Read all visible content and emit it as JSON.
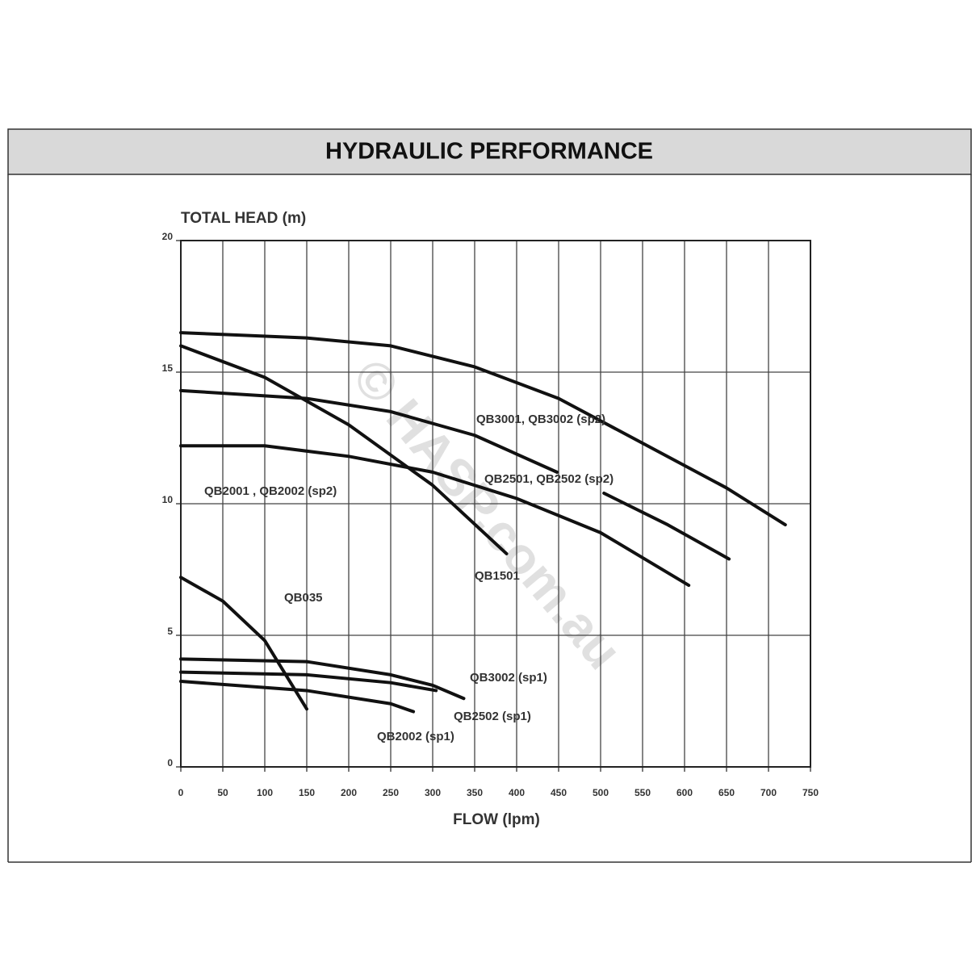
{
  "chart_data": {
    "type": "line",
    "title": "HYDRAULIC PERFORMANCE",
    "y_label": "TOTAL HEAD (m)",
    "x_label": "FLOW (lpm)",
    "watermark": "© HASP.com.au",
    "xlim": [
      0,
      750
    ],
    "ylim": [
      0,
      20
    ],
    "xticks": [
      0,
      50,
      100,
      150,
      200,
      250,
      300,
      350,
      400,
      450,
      500,
      550,
      600,
      650,
      700,
      750
    ],
    "yticks": [
      0,
      5,
      10,
      15,
      20
    ],
    "grid": true,
    "series": [
      {
        "name": "QB3001, QB3002 (sp2)",
        "color": "#111111",
        "x": [
          0,
          150,
          250,
          350,
          450,
          550,
          650,
          720
        ],
        "values": [
          16.5,
          16.3,
          16.0,
          15.2,
          14.0,
          12.3,
          10.6,
          9.2
        ]
      },
      {
        "name": "QB2501, QB2502 (sp2)",
        "color": "#111111",
        "x": [
          0,
          150,
          250,
          350,
          448,
          475,
          504,
          580,
          653
        ],
        "values": [
          14.3,
          14.0,
          13.5,
          12.6,
          11.2,
          null,
          10.4,
          9.2,
          7.9
        ]
      },
      {
        "name": "QB2001 , QB2002 (sp2)",
        "color": "#111111",
        "x": [
          0,
          100,
          200,
          300,
          400,
          500,
          605
        ],
        "values": [
          12.2,
          12.2,
          11.8,
          11.2,
          10.2,
          8.9,
          6.9
        ]
      },
      {
        "name": "QB1501",
        "color": "#111111",
        "x": [
          0,
          100,
          200,
          300,
          388
        ],
        "values": [
          16.0,
          14.8,
          13.0,
          10.7,
          8.1
        ]
      },
      {
        "name": "QB035",
        "color": "#111111",
        "x": [
          0,
          50,
          100,
          150
        ],
        "values": [
          7.2,
          6.3,
          4.8,
          2.2
        ]
      },
      {
        "name": "QB3002 (sp1)",
        "color": "#111111",
        "x": [
          0,
          150,
          250,
          300,
          337
        ],
        "values": [
          4.1,
          4.0,
          3.5,
          3.1,
          2.6
        ]
      },
      {
        "name": "QB2502 (sp1)",
        "color": "#111111",
        "x": [
          0,
          150,
          250,
          304
        ],
        "values": [
          3.6,
          3.5,
          3.2,
          2.9
        ]
      },
      {
        "name": "QB2002 (sp1)",
        "color": "#111111",
        "x": [
          0,
          150,
          250,
          277
        ],
        "values": [
          3.25,
          2.9,
          2.4,
          2.1
        ]
      }
    ]
  }
}
